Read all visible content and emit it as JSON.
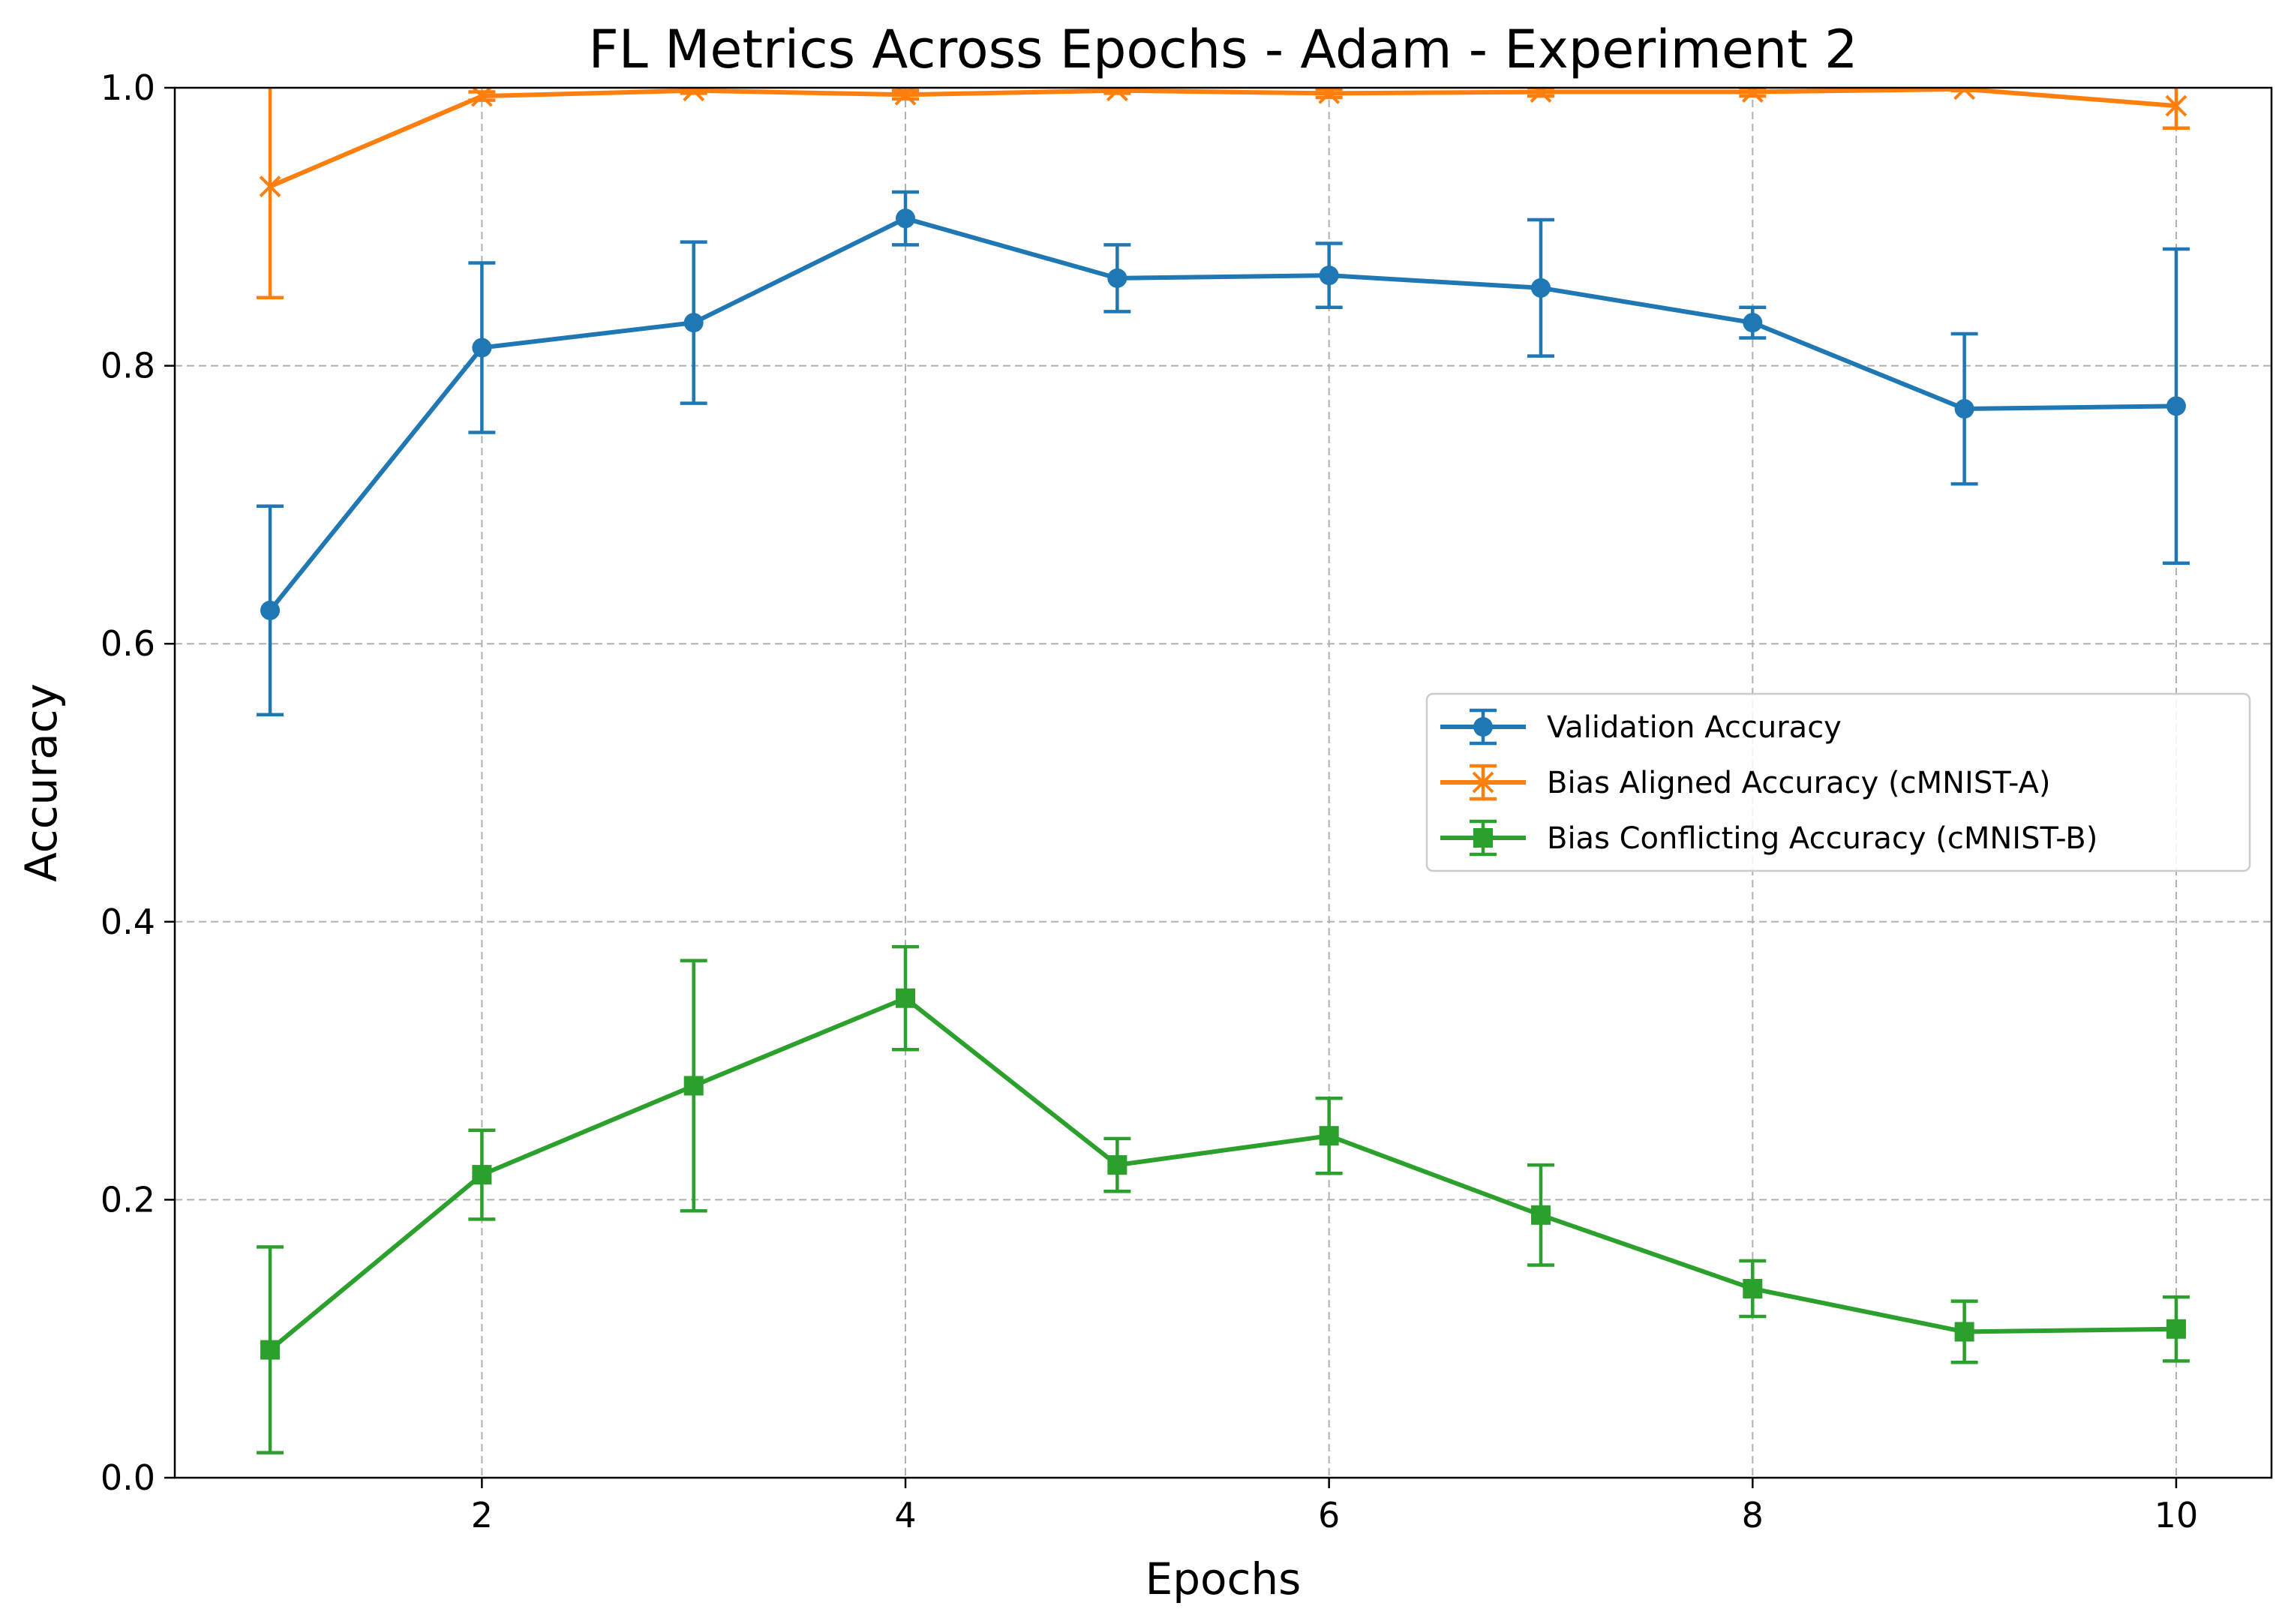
{
  "chart_data": {
    "type": "line",
    "title": "FL Metrics Across Epochs - Adam - Experiment 2",
    "xlabel": "Epochs",
    "ylabel": "Accuracy",
    "xlim": [
      0.55,
      10.45
    ],
    "ylim": [
      0.0,
      1.0
    ],
    "xticks": [
      2,
      4,
      6,
      8,
      10
    ],
    "yticks": [
      0.0,
      0.2,
      0.4,
      0.6,
      0.8,
      1.0
    ],
    "xtick_labels": [
      "2",
      "4",
      "6",
      "8",
      "10"
    ],
    "ytick_labels": [
      "0.0",
      "0.2",
      "0.4",
      "0.6",
      "0.8",
      "1.0"
    ],
    "grid": true,
    "legend_position": "center-right",
    "x": [
      1,
      2,
      3,
      4,
      5,
      6,
      7,
      8,
      9,
      10
    ],
    "series": [
      {
        "name": "Validation Accuracy",
        "color": "#1f77b4",
        "marker": "circle",
        "values": [
          0.624,
          0.813,
          0.831,
          0.906,
          0.863,
          0.865,
          0.856,
          0.831,
          0.769,
          0.771
        ],
        "errors": [
          0.075,
          0.061,
          0.058,
          0.019,
          0.024,
          0.023,
          0.049,
          0.011,
          0.054,
          0.113
        ]
      },
      {
        "name": "Bias Aligned Accuracy (cMNIST-A)",
        "color": "#ff7f0e",
        "marker": "x",
        "values": [
          0.929,
          0.994,
          0.998,
          0.995,
          0.998,
          0.996,
          0.997,
          0.997,
          0.999,
          0.987
        ],
        "errors": [
          0.08,
          0.003,
          0.002,
          0.003,
          0.002,
          0.003,
          0.003,
          0.003,
          0.001,
          0.016
        ]
      },
      {
        "name": "Bias Conflicting Accuracy (cMNIST-B)",
        "color": "#2ca02c",
        "marker": "square",
        "values": [
          0.092,
          0.218,
          0.282,
          0.345,
          0.225,
          0.246,
          0.189,
          0.136,
          0.105,
          0.107
        ],
        "errors": [
          0.074,
          0.032,
          0.09,
          0.037,
          0.019,
          0.027,
          0.036,
          0.02,
          0.022,
          0.023
        ]
      }
    ]
  }
}
